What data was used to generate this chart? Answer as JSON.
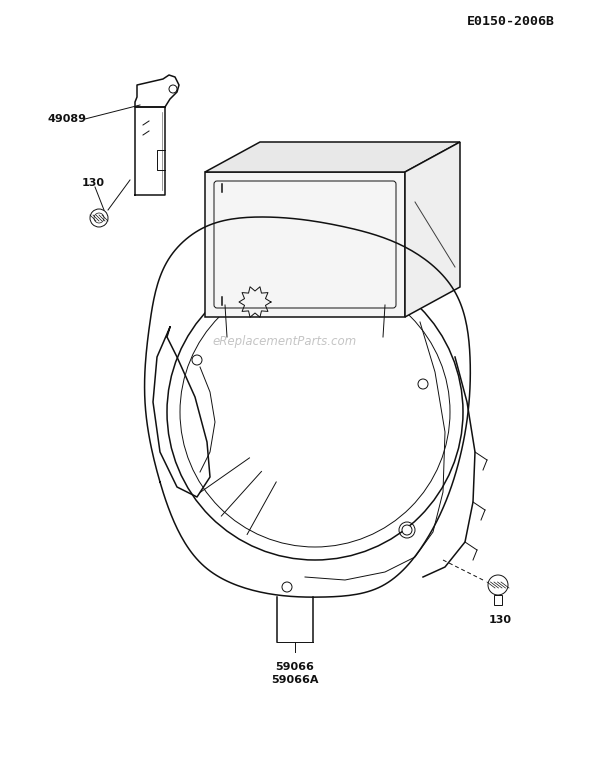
{
  "title": "E0150-2006B",
  "watermark": "eReplacementParts.com",
  "bg_color": "#ffffff",
  "text_color": "#111111",
  "labels": {
    "part1": "49089",
    "part2_left": "130",
    "part3": "59066",
    "part4": "59066A",
    "part5_right": "130"
  },
  "figsize": [
    5.9,
    7.77
  ],
  "dpi": 100
}
